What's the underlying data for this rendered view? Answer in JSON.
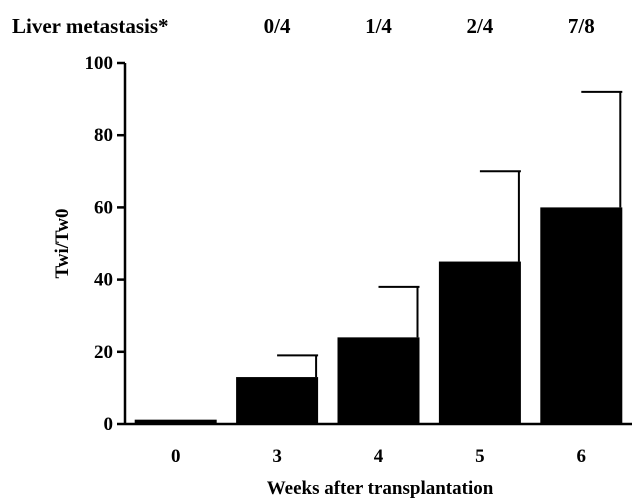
{
  "chart_data": {
    "type": "bar",
    "header_label": "Liver metastasis*",
    "header_values": [
      "0/4",
      "1/4",
      "2/4",
      "7/8"
    ],
    "categories": [
      "0",
      "3",
      "4",
      "5",
      "6"
    ],
    "values": [
      1.2,
      13,
      24,
      45,
      60
    ],
    "error_upper": [
      1.2,
      19,
      38,
      70,
      92
    ],
    "xlabel": "Weeks after transplantation",
    "ylabel": "Twi/Tw0",
    "ylim": [
      0,
      100
    ],
    "yticks": [
      "0",
      "20",
      "40",
      "60",
      "80",
      "100"
    ],
    "grid": false,
    "bar_color": "#000000"
  }
}
